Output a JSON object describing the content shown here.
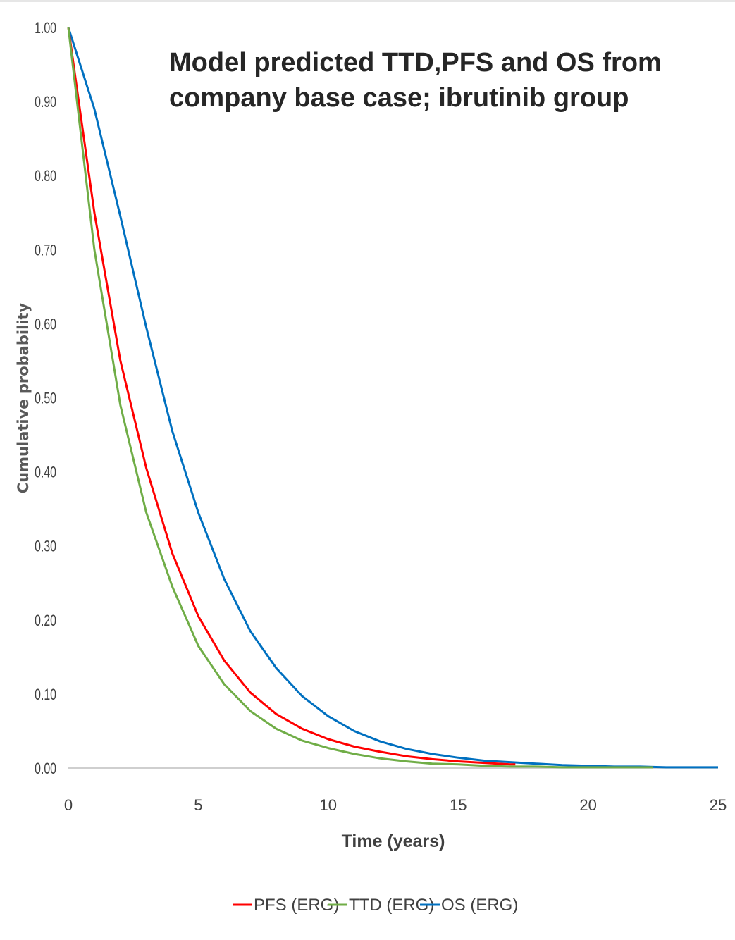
{
  "chart_data": {
    "type": "line",
    "title": [
      "Model predicted TTD,PFS and OS from",
      "company base case; ibrutinib group"
    ],
    "xlabel": "Time (years)",
    "ylabel": "Cumulative probability",
    "xlim": [
      0,
      25
    ],
    "ylim": [
      0,
      1
    ],
    "x_ticks": [
      "0",
      "5",
      "10",
      "15",
      "20",
      "25"
    ],
    "y_ticks": [
      "0.00",
      "0.10",
      "0.20",
      "0.30",
      "0.40",
      "0.50",
      "0.60",
      "0.70",
      "0.80",
      "0.90",
      "1.00"
    ],
    "grid": false,
    "legend_position": "bottom",
    "series": [
      {
        "name": "PFS (ERG)",
        "color": "#ff0000",
        "x": [
          0,
          1,
          2,
          3,
          4,
          5,
          6,
          7,
          8,
          9,
          10,
          11,
          12,
          13,
          14,
          15,
          16,
          17,
          17.2
        ],
        "y": [
          1.0,
          0.75,
          0.55,
          0.405,
          0.29,
          0.205,
          0.145,
          0.102,
          0.073,
          0.053,
          0.039,
          0.029,
          0.022,
          0.016,
          0.012,
          0.009,
          0.007,
          0.005,
          0.005
        ]
      },
      {
        "name": "TTD (ERG)",
        "color": "#70ad47",
        "x": [
          0,
          1,
          2,
          3,
          4,
          5,
          6,
          7,
          8,
          9,
          10,
          11,
          12,
          13,
          14,
          15,
          16,
          17,
          18,
          19,
          20,
          21,
          22,
          22.5
        ],
        "y": [
          1.0,
          0.7,
          0.49,
          0.345,
          0.245,
          0.165,
          0.113,
          0.077,
          0.053,
          0.037,
          0.027,
          0.019,
          0.013,
          0.009,
          0.006,
          0.005,
          0.003,
          0.002,
          0.002,
          0.001,
          0.001,
          0.001,
          0.001,
          0.001
        ]
      },
      {
        "name": "OS (ERG)",
        "color": "#0070c0",
        "x": [
          0,
          1,
          2,
          3,
          4,
          5,
          6,
          7,
          8,
          9,
          10,
          11,
          12,
          13,
          14,
          15,
          16,
          17,
          18,
          19,
          20,
          21,
          22,
          23,
          24,
          25
        ],
        "y": [
          1.0,
          0.89,
          0.745,
          0.595,
          0.455,
          0.345,
          0.255,
          0.185,
          0.135,
          0.097,
          0.07,
          0.05,
          0.036,
          0.026,
          0.019,
          0.014,
          0.01,
          0.008,
          0.006,
          0.004,
          0.003,
          0.002,
          0.002,
          0.001,
          0.001,
          0.001
        ]
      }
    ]
  }
}
